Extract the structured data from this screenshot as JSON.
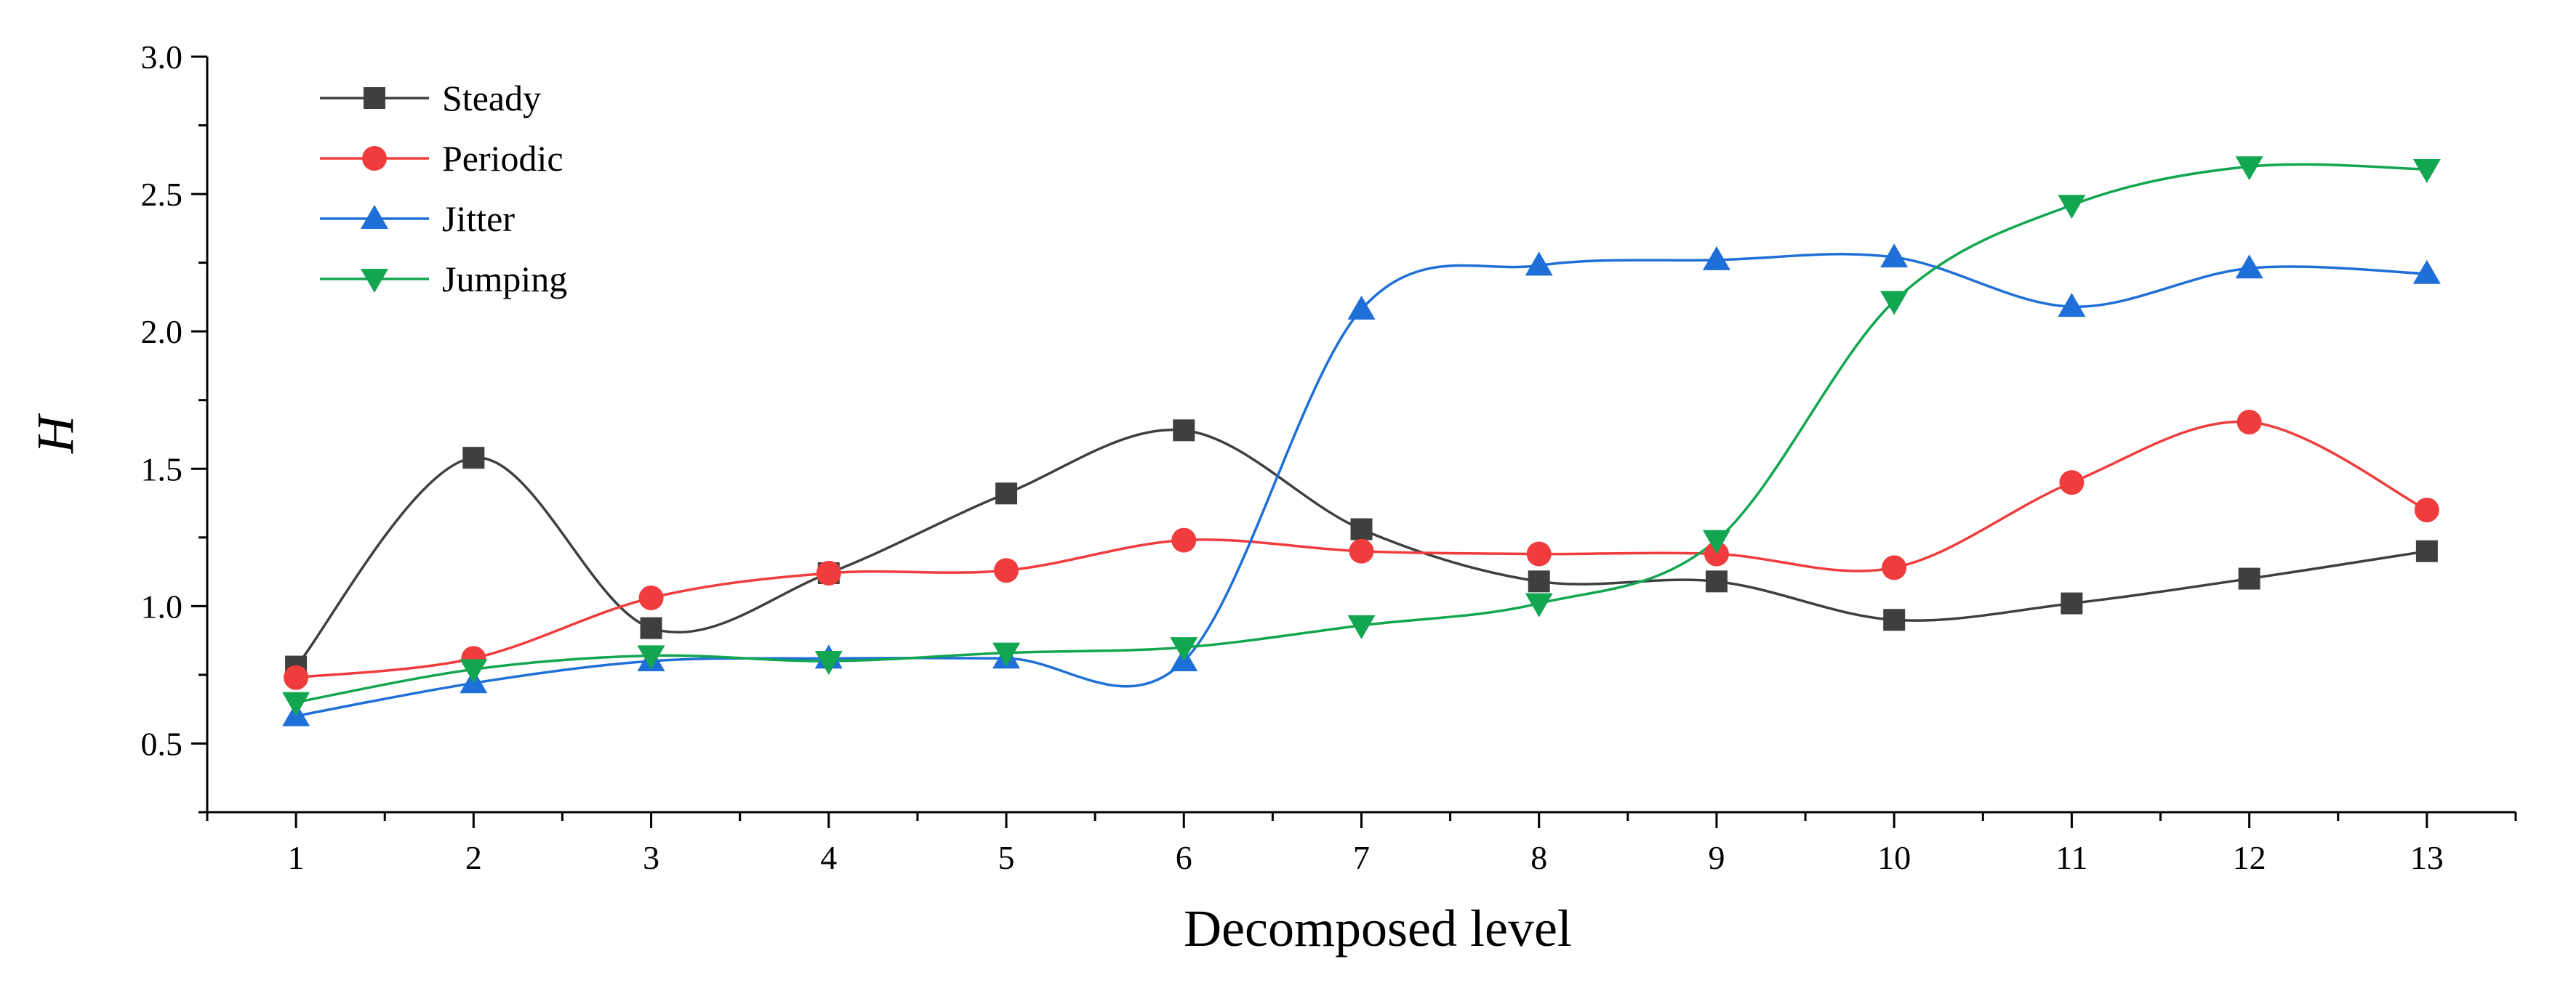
{
  "chart_data": {
    "type": "line",
    "title": "",
    "xlabel": "Decomposed level",
    "ylabel": "H",
    "x": [
      1,
      2,
      3,
      4,
      5,
      6,
      7,
      8,
      9,
      10,
      11,
      12,
      13
    ],
    "xlim": [
      0.5,
      13.5
    ],
    "ylim": [
      0.25,
      3.0
    ],
    "yticks": [
      0.5,
      1.0,
      1.5,
      2.0,
      2.5,
      3.0
    ],
    "ytick_labels": [
      "0.5",
      "1.0",
      "1.5",
      "2.0",
      "2.5",
      "3.0"
    ],
    "xtick_labels": [
      "1",
      "2",
      "3",
      "4",
      "5",
      "6",
      "7",
      "8",
      "9",
      "10",
      "11",
      "12",
      "13"
    ],
    "grid": false,
    "legend_position": "top-left",
    "series": [
      {
        "name": "Steady",
        "color": "#3f3f3f",
        "marker": "square",
        "values": [
          0.78,
          1.54,
          0.92,
          1.12,
          1.41,
          1.64,
          1.28,
          1.09,
          1.09,
          0.95,
          1.01,
          1.1,
          1.2
        ]
      },
      {
        "name": "Periodic",
        "color": "#f03c3c",
        "marker": "circle",
        "values": [
          0.74,
          0.81,
          1.03,
          1.12,
          1.13,
          1.24,
          1.2,
          1.19,
          1.19,
          1.14,
          1.45,
          1.67,
          1.35
        ]
      },
      {
        "name": "Jitter",
        "color": "#1f6fd8",
        "marker": "triangle-up",
        "values": [
          0.6,
          0.72,
          0.8,
          0.81,
          0.81,
          0.8,
          2.08,
          2.24,
          2.26,
          2.27,
          2.09,
          2.23,
          2.21
        ]
      },
      {
        "name": "Jumping",
        "color": "#12a650",
        "marker": "triangle-down",
        "values": [
          0.65,
          0.77,
          0.82,
          0.8,
          0.83,
          0.85,
          0.93,
          1.01,
          1.24,
          2.11,
          2.46,
          2.6,
          2.59
        ]
      }
    ]
  }
}
